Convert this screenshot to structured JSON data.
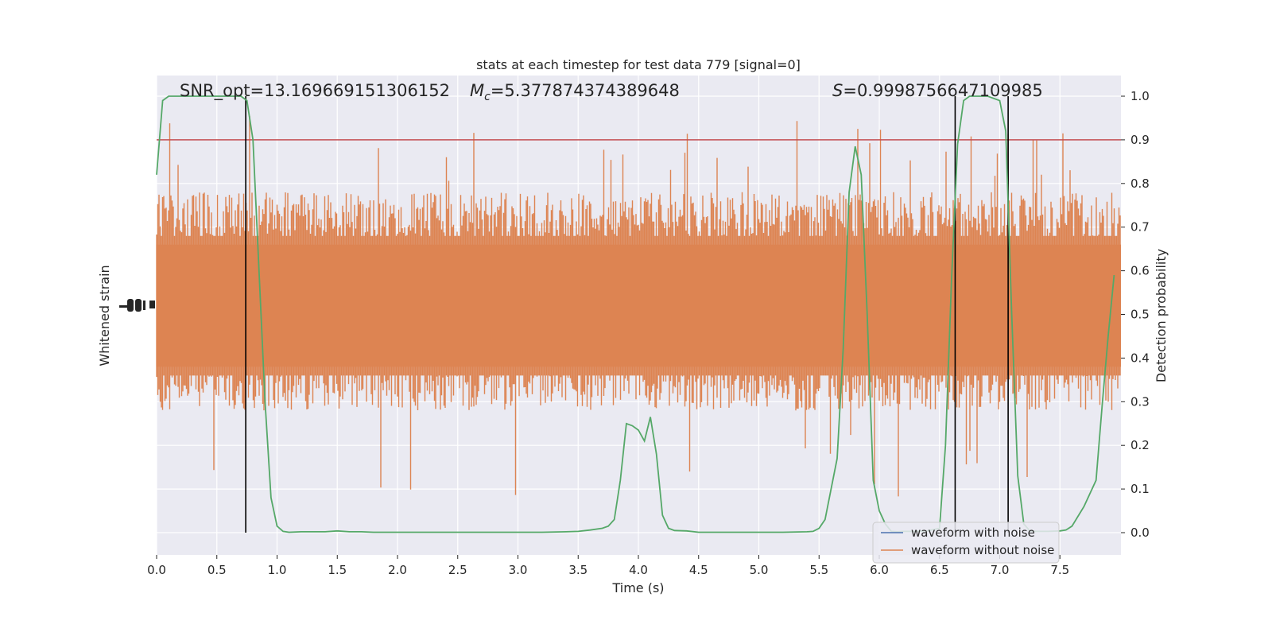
{
  "chart_data": {
    "type": "line",
    "title": "stats at each timestep for test data 779 [signal=0]",
    "xlabel": "Time (s)",
    "ylabel_left": "Whitened strain",
    "ylabel_right": "Detection probability",
    "xlim": [
      0.0,
      8.0
    ],
    "ylim_right": [
      -0.05,
      1.05
    ],
    "x_ticks": [
      "0.0",
      "0.5",
      "1.0",
      "1.5",
      "2.0",
      "2.5",
      "3.0",
      "3.5",
      "4.0",
      "4.5",
      "5.0",
      "5.5",
      "6.0",
      "6.5",
      "7.0",
      "7.5"
    ],
    "y_ticks_right": [
      "0.0",
      "0.1",
      "0.2",
      "0.3",
      "0.4",
      "0.5",
      "0.6",
      "0.7",
      "0.8",
      "0.9",
      "1.0"
    ],
    "grid": true,
    "annotations": {
      "snr": "SNR_opt=13.169669151306152",
      "mc_symbol": "M",
      "mc_subscript": "c",
      "mc_value": "=5.377874374389648",
      "s_symbol": "S",
      "s_value": "=0.9998756647109985"
    },
    "threshold": {
      "y": 0.9,
      "color": "#c44e52"
    },
    "vertical_lines": [
      0.74,
      6.63,
      7.07
    ],
    "legend": {
      "position": "lower-right",
      "entries": [
        {
          "label": "waveform with noise",
          "color": "#4c72b0"
        },
        {
          "label": "waveform without noise",
          "color": "#dd8452"
        }
      ]
    },
    "strain": {
      "color": "#dd8452",
      "note_band": "dense noise band",
      "core_low": 0.38,
      "core_high": 0.66,
      "mean": 0.52
    },
    "series": [
      {
        "name": "detection probability",
        "color": "#55a868",
        "x": [
          0.0,
          0.05,
          0.1,
          0.2,
          0.3,
          0.4,
          0.5,
          0.6,
          0.7,
          0.75,
          0.8,
          0.85,
          0.9,
          0.95,
          1.0,
          1.05,
          1.1,
          1.2,
          1.3,
          1.4,
          1.5,
          1.6,
          1.7,
          1.8,
          2.0,
          2.2,
          2.4,
          2.6,
          2.8,
          3.0,
          3.2,
          3.4,
          3.5,
          3.6,
          3.7,
          3.75,
          3.8,
          3.85,
          3.9,
          3.95,
          4.0,
          4.05,
          4.1,
          4.15,
          4.2,
          4.25,
          4.3,
          4.4,
          4.5,
          4.6,
          4.7,
          4.8,
          5.0,
          5.2,
          5.4,
          5.45,
          5.5,
          5.55,
          5.6,
          5.65,
          5.7,
          5.75,
          5.8,
          5.85,
          5.9,
          5.95,
          6.0,
          6.05,
          6.1,
          6.15,
          6.2,
          6.3,
          6.4,
          6.5,
          6.55,
          6.6,
          6.65,
          6.7,
          6.75,
          6.8,
          6.9,
          7.0,
          7.05,
          7.1,
          7.15,
          7.2,
          7.25,
          7.3,
          7.4,
          7.5,
          7.55,
          7.6,
          7.7,
          7.8,
          7.85,
          7.9,
          7.95
        ],
        "values": [
          0.82,
          0.99,
          1.0,
          1.0,
          1.0,
          1.0,
          1.0,
          1.0,
          1.0,
          0.99,
          0.9,
          0.6,
          0.3,
          0.08,
          0.015,
          0.003,
          0.001,
          0.002,
          0.002,
          0.002,
          0.004,
          0.002,
          0.002,
          0.001,
          0.001,
          0.001,
          0.001,
          0.001,
          0.001,
          0.001,
          0.001,
          0.002,
          0.003,
          0.006,
          0.01,
          0.015,
          0.03,
          0.12,
          0.25,
          0.245,
          0.235,
          0.21,
          0.265,
          0.18,
          0.04,
          0.01,
          0.005,
          0.004,
          0.001,
          0.001,
          0.001,
          0.001,
          0.001,
          0.001,
          0.002,
          0.003,
          0.01,
          0.03,
          0.1,
          0.17,
          0.42,
          0.78,
          0.885,
          0.82,
          0.5,
          0.12,
          0.05,
          0.02,
          0.003,
          0.002,
          0.003,
          0.003,
          0.004,
          0.01,
          0.2,
          0.58,
          0.89,
          0.99,
          1.0,
          1.0,
          1.0,
          0.99,
          0.92,
          0.5,
          0.13,
          0.02,
          0.004,
          0.003,
          0.003,
          0.004,
          0.006,
          0.015,
          0.06,
          0.12,
          0.29,
          0.45,
          0.59
        ]
      }
    ]
  }
}
